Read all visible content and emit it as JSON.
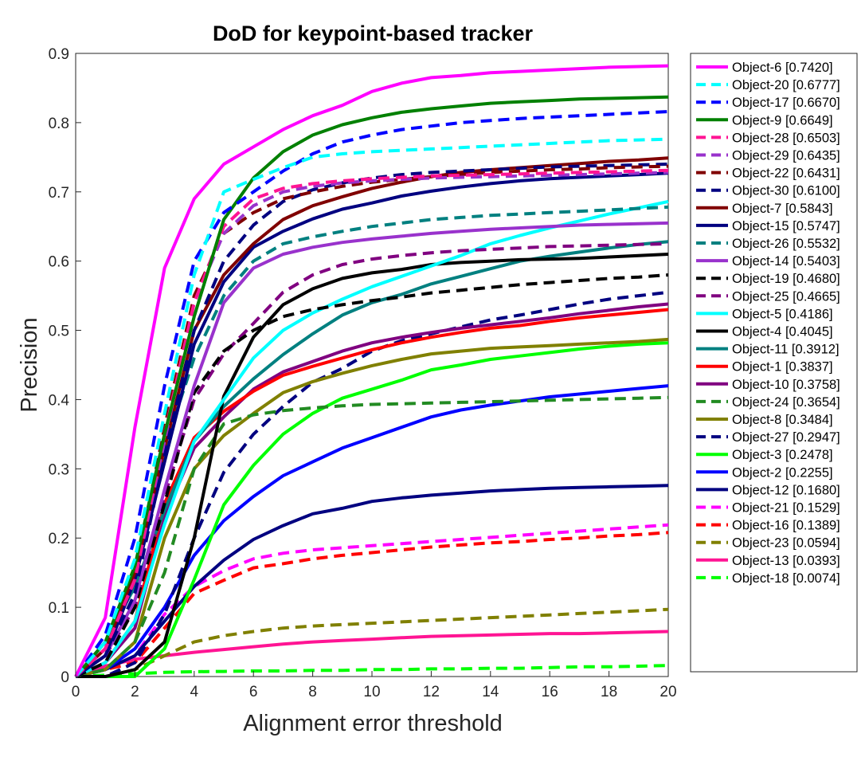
{
  "chart_data": {
    "type": "line",
    "title": "DoD for keypoint-based tracker",
    "xlabel": "Alignment error threshold",
    "ylabel": "Precision",
    "xlim": [
      0,
      20
    ],
    "ylim": [
      0,
      0.9
    ],
    "xticks": [
      "0",
      "2",
      "4",
      "6",
      "8",
      "10",
      "12",
      "14",
      "16",
      "18",
      "20"
    ],
    "yticks": [
      "0",
      "0.1",
      "0.2",
      "0.3",
      "0.4",
      "0.5",
      "0.6",
      "0.7",
      "0.8",
      "0.9"
    ],
    "grid": false,
    "legend_position": "outside-right",
    "x": [
      0,
      1,
      2,
      3,
      4,
      5,
      6,
      7,
      8,
      9,
      10,
      11,
      12,
      13,
      14,
      15,
      16,
      17,
      18,
      19,
      20
    ],
    "series": [
      {
        "name": "Object-6 [0.7420]",
        "color": "#ff00ff",
        "dash": "solid",
        "values": [
          0,
          0.085,
          0.36,
          0.59,
          0.69,
          0.74,
          0.765,
          0.79,
          0.81,
          0.825,
          0.845,
          0.857,
          0.865,
          0.868,
          0.872,
          0.874,
          0.876,
          0.878,
          0.88,
          0.881,
          0.882
        ]
      },
      {
        "name": "Object-20 [0.6777]",
        "color": "#00ffff",
        "dash": "dashed",
        "values": [
          0,
          0.05,
          0.17,
          0.38,
          0.58,
          0.7,
          0.718,
          0.735,
          0.75,
          0.755,
          0.758,
          0.76,
          0.762,
          0.764,
          0.766,
          0.768,
          0.77,
          0.772,
          0.774,
          0.775,
          0.776
        ]
      },
      {
        "name": "Object-17 [0.6670]",
        "color": "#0000ff",
        "dash": "dashed",
        "values": [
          0,
          0.06,
          0.2,
          0.42,
          0.6,
          0.67,
          0.7,
          0.73,
          0.755,
          0.772,
          0.782,
          0.79,
          0.795,
          0.8,
          0.803,
          0.806,
          0.808,
          0.81,
          0.812,
          0.814,
          0.816
        ]
      },
      {
        "name": "Object-9 [0.6649]",
        "color": "#008000",
        "dash": "solid",
        "values": [
          0,
          0.05,
          0.16,
          0.35,
          0.52,
          0.66,
          0.72,
          0.758,
          0.782,
          0.797,
          0.807,
          0.815,
          0.82,
          0.824,
          0.828,
          0.83,
          0.832,
          0.834,
          0.835,
          0.836,
          0.837
        ]
      },
      {
        "name": "Object-28 [0.6503]",
        "color": "#ff1493",
        "dash": "dashed",
        "values": [
          0,
          0.04,
          0.14,
          0.35,
          0.54,
          0.65,
          0.69,
          0.705,
          0.712,
          0.716,
          0.719,
          0.721,
          0.723,
          0.724,
          0.725,
          0.726,
          0.727,
          0.728,
          0.729,
          0.73,
          0.731
        ]
      },
      {
        "name": "Object-29 [0.6435]",
        "color": "#9932cc",
        "dash": "dashed",
        "values": [
          0,
          0.04,
          0.14,
          0.34,
          0.54,
          0.64,
          0.68,
          0.7,
          0.708,
          0.713,
          0.716,
          0.718,
          0.72,
          0.721,
          0.722,
          0.723,
          0.724,
          0.725,
          0.726,
          0.727,
          0.728
        ]
      },
      {
        "name": "Object-22 [0.6431]",
        "color": "#800000",
        "dash": "dashed",
        "values": [
          0,
          0.04,
          0.15,
          0.36,
          0.55,
          0.64,
          0.67,
          0.69,
          0.7,
          0.708,
          0.714,
          0.718,
          0.722,
          0.725,
          0.728,
          0.73,
          0.732,
          0.733,
          0.735,
          0.736,
          0.737
        ]
      },
      {
        "name": "Object-30 [0.6100]",
        "color": "#000080",
        "dash": "dashed",
        "values": [
          0,
          0.03,
          0.12,
          0.32,
          0.5,
          0.6,
          0.652,
          0.686,
          0.703,
          0.713,
          0.72,
          0.725,
          0.728,
          0.73,
          0.732,
          0.734,
          0.736,
          0.737,
          0.738,
          0.739,
          0.74
        ]
      },
      {
        "name": "Object-7 [0.5843]",
        "color": "#800000",
        "dash": "solid",
        "values": [
          0,
          0.04,
          0.15,
          0.33,
          0.5,
          0.58,
          0.625,
          0.66,
          0.68,
          0.693,
          0.705,
          0.714,
          0.722,
          0.728,
          0.732,
          0.735,
          0.738,
          0.741,
          0.744,
          0.746,
          0.749
        ]
      },
      {
        "name": "Object-15 [0.5747]",
        "color": "#000080",
        "dash": "solid",
        "values": [
          0,
          0.03,
          0.14,
          0.31,
          0.48,
          0.57,
          0.62,
          0.643,
          0.661,
          0.675,
          0.684,
          0.694,
          0.701,
          0.707,
          0.712,
          0.716,
          0.719,
          0.721,
          0.723,
          0.725,
          0.727
        ]
      },
      {
        "name": "Object-26 [0.5532]",
        "color": "#008080",
        "dash": "dashed",
        "values": [
          0,
          0.05,
          0.15,
          0.33,
          0.46,
          0.55,
          0.6,
          0.625,
          0.635,
          0.643,
          0.65,
          0.655,
          0.66,
          0.663,
          0.666,
          0.668,
          0.67,
          0.672,
          0.674,
          0.676,
          0.678
        ]
      },
      {
        "name": "Object-14 [0.5403]",
        "color": "#9932cc",
        "dash": "solid",
        "values": [
          0,
          0.03,
          0.11,
          0.27,
          0.42,
          0.54,
          0.59,
          0.61,
          0.62,
          0.627,
          0.632,
          0.636,
          0.64,
          0.643,
          0.646,
          0.648,
          0.65,
          0.652,
          0.653,
          0.654,
          0.655
        ]
      },
      {
        "name": "Object-19 [0.4680]",
        "color": "#000000",
        "dash": "dashed",
        "values": [
          0,
          0.02,
          0.1,
          0.25,
          0.41,
          0.47,
          0.5,
          0.52,
          0.53,
          0.537,
          0.543,
          0.548,
          0.554,
          0.558,
          0.562,
          0.566,
          0.569,
          0.572,
          0.575,
          0.577,
          0.58
        ]
      },
      {
        "name": "Object-25 [0.4665]",
        "color": "#800080",
        "dash": "dashed",
        "values": [
          0,
          0.03,
          0.1,
          0.26,
          0.4,
          0.466,
          0.51,
          0.555,
          0.58,
          0.595,
          0.603,
          0.608,
          0.612,
          0.615,
          0.617,
          0.619,
          0.621,
          0.622,
          0.623,
          0.624,
          0.625
        ]
      },
      {
        "name": "Object-5 [0.4186]",
        "color": "#00ffff",
        "dash": "solid",
        "values": [
          0,
          0.02,
          0.08,
          0.22,
          0.34,
          0.4,
          0.46,
          0.5,
          0.525,
          0.545,
          0.563,
          0.578,
          0.593,
          0.608,
          0.625,
          0.637,
          0.648,
          0.658,
          0.668,
          0.677,
          0.686
        ]
      },
      {
        "name": "Object-4 [0.4045]",
        "color": "#000000",
        "dash": "solid",
        "values": [
          0,
          0,
          0.01,
          0.05,
          0.2,
          0.405,
          0.49,
          0.537,
          0.56,
          0.575,
          0.583,
          0.588,
          0.595,
          0.598,
          0.6,
          0.602,
          0.603,
          0.604,
          0.606,
          0.608,
          0.61
        ]
      },
      {
        "name": "Object-11 [0.3912]",
        "color": "#008080",
        "dash": "solid",
        "values": [
          0,
          0.05,
          0.13,
          0.24,
          0.34,
          0.39,
          0.43,
          0.465,
          0.495,
          0.522,
          0.54,
          0.552,
          0.567,
          0.578,
          0.589,
          0.6,
          0.607,
          0.613,
          0.619,
          0.624,
          0.628
        ]
      },
      {
        "name": "Object-1 [0.3837]",
        "color": "#ff0000",
        "dash": "solid",
        "values": [
          0,
          0.02,
          0.08,
          0.25,
          0.345,
          0.383,
          0.412,
          0.435,
          0.448,
          0.46,
          0.472,
          0.482,
          0.49,
          0.497,
          0.503,
          0.507,
          0.513,
          0.518,
          0.522,
          0.526,
          0.53
        ]
      },
      {
        "name": "Object-10 [0.3758]",
        "color": "#800080",
        "dash": "solid",
        "values": [
          0,
          0.02,
          0.07,
          0.23,
          0.33,
          0.375,
          0.415,
          0.44,
          0.455,
          0.47,
          0.482,
          0.49,
          0.497,
          0.503,
          0.508,
          0.513,
          0.518,
          0.524,
          0.529,
          0.534,
          0.538
        ]
      },
      {
        "name": "Object-24 [0.3654]",
        "color": "#228b22",
        "dash": "dashed",
        "values": [
          0,
          0.01,
          0.05,
          0.15,
          0.3,
          0.365,
          0.378,
          0.384,
          0.388,
          0.391,
          0.393,
          0.394,
          0.395,
          0.396,
          0.397,
          0.398,
          0.399,
          0.4,
          0.401,
          0.402,
          0.403
        ]
      },
      {
        "name": "Object-8 [0.3484]",
        "color": "#808000",
        "dash": "solid",
        "values": [
          0,
          0.01,
          0.05,
          0.2,
          0.3,
          0.348,
          0.38,
          0.41,
          0.426,
          0.438,
          0.449,
          0.458,
          0.466,
          0.47,
          0.474,
          0.476,
          0.478,
          0.48,
          0.482,
          0.484,
          0.487
        ]
      },
      {
        "name": "Object-27 [0.2947]",
        "color": "#000080",
        "dash": "dashed",
        "values": [
          0,
          0,
          0.02,
          0.09,
          0.2,
          0.295,
          0.35,
          0.39,
          0.425,
          0.445,
          0.47,
          0.485,
          0.495,
          0.505,
          0.515,
          0.522,
          0.53,
          0.538,
          0.545,
          0.55,
          0.555
        ]
      },
      {
        "name": "Object-3 [0.2478]",
        "color": "#00ff00",
        "dash": "solid",
        "values": [
          0,
          0,
          0,
          0.04,
          0.14,
          0.248,
          0.305,
          0.35,
          0.38,
          0.402,
          0.415,
          0.428,
          0.443,
          0.45,
          0.458,
          0.463,
          0.468,
          0.473,
          0.477,
          0.48,
          0.482
        ]
      },
      {
        "name": "Object-2 [0.2255]",
        "color": "#0000ff",
        "dash": "solid",
        "values": [
          0,
          0.01,
          0.04,
          0.1,
          0.175,
          0.225,
          0.26,
          0.29,
          0.31,
          0.33,
          0.345,
          0.36,
          0.375,
          0.385,
          0.392,
          0.398,
          0.404,
          0.408,
          0.412,
          0.416,
          0.42
        ]
      },
      {
        "name": "Object-12 [0.1680]",
        "color": "#000080",
        "dash": "solid",
        "values": [
          0,
          0.01,
          0.03,
          0.08,
          0.13,
          0.168,
          0.198,
          0.218,
          0.235,
          0.243,
          0.253,
          0.258,
          0.262,
          0.265,
          0.268,
          0.27,
          0.272,
          0.273,
          0.274,
          0.275,
          0.276
        ]
      },
      {
        "name": "Object-21 [0.1529]",
        "color": "#ff00ff",
        "dash": "dashed",
        "values": [
          0,
          0.01,
          0.03,
          0.09,
          0.13,
          0.153,
          0.17,
          0.178,
          0.183,
          0.186,
          0.189,
          0.192,
          0.195,
          0.198,
          0.201,
          0.204,
          0.207,
          0.21,
          0.213,
          0.216,
          0.219
        ]
      },
      {
        "name": "Object-16 [0.1389]",
        "color": "#ff0000",
        "dash": "dashed",
        "values": [
          0,
          0.01,
          0.02,
          0.07,
          0.12,
          0.139,
          0.157,
          0.163,
          0.17,
          0.175,
          0.179,
          0.183,
          0.187,
          0.19,
          0.193,
          0.195,
          0.198,
          0.2,
          0.203,
          0.205,
          0.208
        ]
      },
      {
        "name": "Object-23 [0.0594]",
        "color": "#808000",
        "dash": "dashed",
        "values": [
          0,
          0,
          0.01,
          0.03,
          0.05,
          0.059,
          0.065,
          0.07,
          0.073,
          0.075,
          0.077,
          0.079,
          0.081,
          0.083,
          0.085,
          0.087,
          0.089,
          0.091,
          0.093,
          0.095,
          0.097
        ]
      },
      {
        "name": "Object-13 [0.0393]",
        "color": "#ff1493",
        "dash": "solid",
        "values": [
          0,
          0.015,
          0.025,
          0.03,
          0.035,
          0.039,
          0.043,
          0.047,
          0.05,
          0.052,
          0.054,
          0.056,
          0.058,
          0.059,
          0.06,
          0.061,
          0.062,
          0.062,
          0.063,
          0.064,
          0.065
        ]
      },
      {
        "name": "Object-18 [0.0074]",
        "color": "#00ff00",
        "dash": "dashed",
        "values": [
          0,
          0.002,
          0.004,
          0.006,
          0.007,
          0.0074,
          0.008,
          0.008,
          0.009,
          0.009,
          0.01,
          0.01,
          0.011,
          0.011,
          0.012,
          0.012,
          0.013,
          0.014,
          0.014,
          0.015,
          0.016
        ]
      }
    ]
  }
}
